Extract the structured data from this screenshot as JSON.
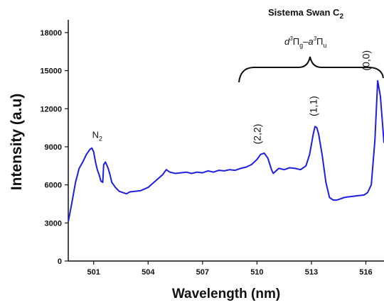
{
  "chart_data": {
    "type": "line",
    "title": "Sistema Swan C",
    "title_subscript": "2",
    "xlabel": "Wavelength (nm)",
    "ylabel": "Intensity (a.u)",
    "xlim": [
      499.6,
      517.0
    ],
    "ylim": [
      0,
      19000
    ],
    "x_ticks": [
      501,
      504,
      507,
      510,
      513,
      516
    ],
    "y_ticks": [
      0,
      3000,
      6000,
      9000,
      12000,
      15000,
      18000
    ],
    "grid": false,
    "line_color": "#1f1fe0",
    "series": [
      {
        "x": [
          499.6,
          499.8,
          500.0,
          500.2,
          500.4,
          500.6,
          500.8,
          500.9,
          501.0,
          501.1,
          501.2,
          501.3,
          501.4,
          501.5,
          501.55,
          501.65,
          501.8,
          501.9,
          502.0,
          502.2,
          502.4,
          502.6,
          502.8,
          503.0,
          503.3,
          503.6,
          504.0,
          504.4,
          504.8,
          505.0,
          505.2,
          505.5,
          505.8,
          506.1,
          506.4,
          506.7,
          507.0,
          507.3,
          507.6,
          507.9,
          508.2,
          508.5,
          508.8,
          509.1,
          509.4,
          509.7,
          510.0,
          510.2,
          510.4,
          510.6,
          510.8,
          510.9,
          511.2,
          511.5,
          511.8,
          512.1,
          512.4,
          512.7,
          512.9,
          513.1,
          513.2,
          513.3,
          513.4,
          513.6,
          513.8,
          514.0,
          514.2,
          514.4,
          514.6,
          514.8,
          515.0,
          515.3,
          515.6,
          515.9,
          516.1,
          516.3,
          516.5,
          516.65,
          516.8,
          516.9,
          517.0
        ],
        "y": [
          3100,
          4600,
          6200,
          7300,
          7800,
          8400,
          8800,
          8900,
          8600,
          7800,
          7200,
          6800,
          6300,
          6200,
          7600,
          7800,
          7300,
          6800,
          6200,
          5800,
          5500,
          5400,
          5300,
          5450,
          5500,
          5550,
          5800,
          6300,
          6800,
          7200,
          7000,
          6900,
          6950,
          7000,
          6900,
          7000,
          6950,
          7100,
          7000,
          7150,
          7100,
          7200,
          7150,
          7300,
          7400,
          7600,
          8000,
          8400,
          8500,
          8100,
          7200,
          6900,
          7300,
          7200,
          7350,
          7300,
          7200,
          7500,
          8400,
          10000,
          10600,
          10500,
          10000,
          8300,
          6200,
          5000,
          4800,
          4800,
          4900,
          5000,
          5050,
          5100,
          5150,
          5200,
          5400,
          6000,
          9500,
          14200,
          13000,
          11200,
          9300
        ]
      }
    ],
    "annotations": {
      "n2": {
        "label": "N",
        "sub": "2",
        "x": 501.2,
        "y": 9700
      },
      "band_22": {
        "label": "(2,2)",
        "x": 510.2,
        "y": 9200
      },
      "band_11": {
        "label": "(1,1)",
        "x": 513.3,
        "y": 11400
      },
      "band_00": {
        "label": "(0,0)",
        "x": 516.2,
        "y": 15000
      },
      "transition": {
        "left": {
          "letter": "d",
          "sup": "3",
          "sym": "Π",
          "sub": "g"
        },
        "right": {
          "letter": "a",
          "sup": "3",
          "sym": "Π",
          "sub": "u"
        },
        "separator": "–"
      }
    }
  }
}
